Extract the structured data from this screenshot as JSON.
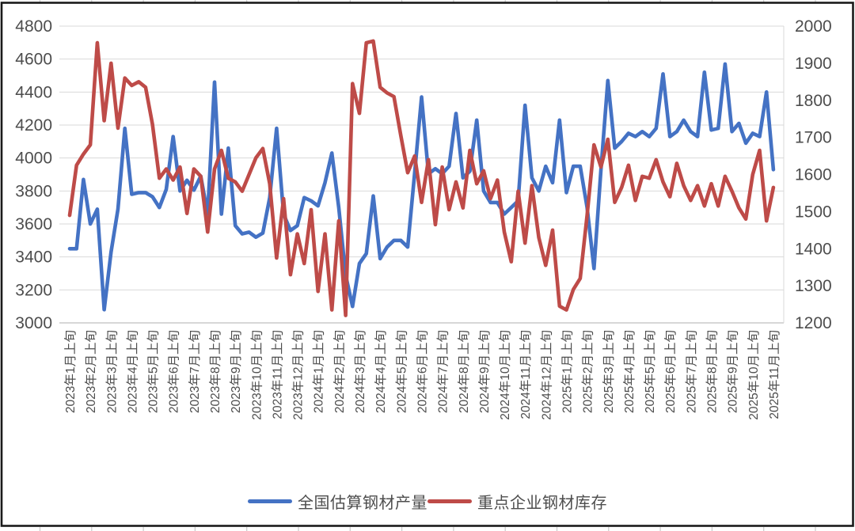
{
  "chart_data": {
    "type": "line",
    "title": "",
    "grid": true,
    "legend_position": "bottom",
    "left_axis": {
      "min": 3000,
      "max": 4800,
      "step": 200,
      "ticks": [
        4800,
        4600,
        4400,
        4200,
        4000,
        3800,
        3600,
        3400,
        3200,
        3000
      ]
    },
    "right_axis": {
      "min": 1200,
      "max": 2000,
      "step": 100,
      "ticks": [
        2000,
        1900,
        1800,
        1700,
        1600,
        1500,
        1400,
        1300,
        1200
      ]
    },
    "x_month_labels": [
      "2023年1月上旬",
      "2023年2月上旬",
      "2023年3月上旬",
      "2023年4月上旬",
      "2023年5月上旬",
      "2023年6月上旬",
      "2023年7月上旬",
      "2023年8月上旬",
      "2023年9月上旬",
      "2023年10月上旬",
      "2023年11月上旬",
      "2023年12月上旬",
      "2024年1月上旬",
      "2024年2月上旬",
      "2024年3月上旬",
      "2024年4月上旬",
      "2024年5月上旬",
      "2024年6月上旬",
      "2024年7月上旬",
      "2024年8月上旬",
      "2024年9月上旬",
      "2024年10月上旬",
      "2024年11月上旬",
      "2024年12月上旬",
      "2025年1月上旬",
      "2025年2月上旬",
      "2025年3月上旬",
      "2025年4月上旬",
      "2025年5月上旬",
      "2025年6月上旬",
      "2025年7月上旬",
      "2025年8月上旬",
      "2025年9月上旬",
      "2025年10月上旬",
      "2025年11月上旬"
    ],
    "points_per_month": 3,
    "series": [
      {
        "name": "全国估算钢材产量",
        "color": "#4472C4",
        "axis": "left",
        "values": [
          3450,
          3450,
          3870,
          3600,
          3690,
          3080,
          3430,
          3690,
          4180,
          3780,
          3790,
          3790,
          3765,
          3700,
          3810,
          4130,
          3800,
          3865,
          3805,
          3890,
          3660,
          4460,
          3660,
          4060,
          3590,
          3540,
          3550,
          3520,
          3545,
          3760,
          4180,
          3660,
          3560,
          3590,
          3760,
          3740,
          3710,
          3850,
          4030,
          3700,
          3290,
          3100,
          3360,
          3420,
          3770,
          3390,
          3460,
          3500,
          3500,
          3460,
          3910,
          4370,
          3905,
          3935,
          3905,
          3950,
          4270,
          3880,
          3920,
          4230,
          3800,
          3730,
          3730,
          3660,
          3700,
          3740,
          4320,
          3880,
          3800,
          3950,
          3850,
          4230,
          3790,
          3950,
          3950,
          3700,
          3330,
          3930,
          4470,
          4060,
          4100,
          4150,
          4130,
          4160,
          4130,
          4180,
          4510,
          4130,
          4160,
          4230,
          4160,
          4130,
          4520,
          4170,
          4180,
          4570,
          4160,
          4210,
          4090,
          4150,
          4130,
          4400,
          3930
        ]
      },
      {
        "name": "重点企业钢材库存",
        "color": "#BE4B48",
        "axis": "right",
        "values": [
          1490,
          1625,
          1655,
          1680,
          1955,
          1745,
          1900,
          1725,
          1860,
          1840,
          1850,
          1835,
          1735,
          1590,
          1615,
          1585,
          1620,
          1495,
          1615,
          1595,
          1445,
          1615,
          1665,
          1590,
          1580,
          1555,
          1600,
          1645,
          1670,
          1575,
          1375,
          1535,
          1330,
          1440,
          1360,
          1505,
          1285,
          1440,
          1235,
          1475,
          1220,
          1845,
          1765,
          1955,
          1960,
          1835,
          1820,
          1810,
          1705,
          1605,
          1650,
          1525,
          1640,
          1465,
          1620,
          1505,
          1580,
          1510,
          1665,
          1575,
          1610,
          1535,
          1585,
          1445,
          1365,
          1555,
          1415,
          1570,
          1430,
          1355,
          1450,
          1245,
          1235,
          1290,
          1320,
          1490,
          1680,
          1620,
          1695,
          1525,
          1565,
          1625,
          1530,
          1595,
          1590,
          1640,
          1580,
          1540,
          1630,
          1570,
          1530,
          1570,
          1515,
          1575,
          1515,
          1595,
          1555,
          1510,
          1480,
          1600,
          1665,
          1475,
          1565
        ]
      }
    ],
    "colors": {
      "gridline": "#D9D9D9",
      "axis_line": "#BFBFBF",
      "tick_text": "#4d4d4d",
      "frame_border": "#1a1a1a",
      "sheet_gridline_stub": "#c9c9c9"
    }
  },
  "legend": {
    "production_label": "全国估算钢材产量",
    "inventory_label": "重点企业钢材库存"
  }
}
